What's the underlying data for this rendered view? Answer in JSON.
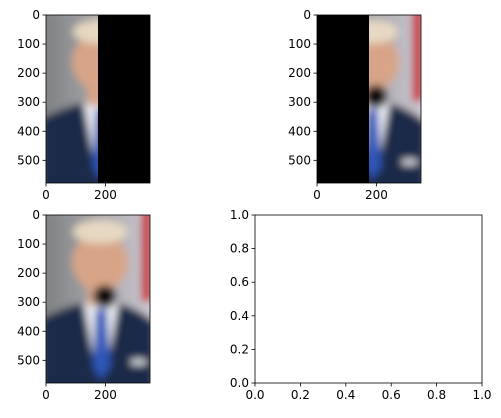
{
  "chart_data": [
    {
      "type": "image",
      "xlim": [
        0,
        350
      ],
      "ylim": [
        578,
        0
      ],
      "xticks": [
        0,
        200
      ],
      "yticks": [
        0,
        100,
        200,
        300,
        400,
        500
      ],
      "xtick_labels": [
        "0",
        "200"
      ],
      "ytick_labels": [
        "0",
        "100",
        "200",
        "300",
        "400",
        "500"
      ],
      "masked_side": "right",
      "visible_fraction": 0.5
    },
    {
      "type": "image",
      "xlim": [
        0,
        350
      ],
      "ylim": [
        578,
        0
      ],
      "xticks": [
        0,
        200
      ],
      "yticks": [
        0,
        100,
        200,
        300,
        400,
        500
      ],
      "xtick_labels": [
        "0",
        "200"
      ],
      "ytick_labels": [
        "0",
        "100",
        "200",
        "300",
        "400",
        "500"
      ],
      "masked_side": "left",
      "visible_fraction": 0.5
    },
    {
      "type": "image",
      "xlim": [
        0,
        350
      ],
      "ylim": [
        578,
        0
      ],
      "xticks": [
        0,
        200
      ],
      "yticks": [
        0,
        100,
        200,
        300,
        400,
        500
      ],
      "xtick_labels": [
        "0",
        "200"
      ],
      "ytick_labels": [
        "0",
        "100",
        "200",
        "300",
        "400",
        "500"
      ],
      "masked_side": "none",
      "visible_fraction": 1.0
    },
    {
      "type": "empty",
      "xlim": [
        0,
        1
      ],
      "ylim": [
        0,
        1
      ],
      "xticks": [
        0,
        0.2,
        0.4,
        0.6,
        0.8,
        1.0
      ],
      "yticks": [
        0,
        0.2,
        0.4,
        0.6,
        0.8,
        1.0
      ],
      "xtick_labels": [
        "0.0",
        "0.2",
        "0.4",
        "0.6",
        "0.8",
        "1.0"
      ],
      "ytick_labels": [
        "0.0",
        "0.2",
        "0.4",
        "0.6",
        "0.8",
        "1.0"
      ]
    }
  ],
  "colors": {
    "mask": "#000000",
    "background": "#ffffff",
    "suit": "#1f2a48",
    "suit_shadow": "#121a30",
    "shirt": "#e9ecf3",
    "tie": "#2e56b8",
    "skin": "#d8a487",
    "hair": "#e6d8c2",
    "backdrop_left": "#7b7f80",
    "backdrop_right": "#cfcad3",
    "flag_red": "#c81e2d",
    "pin": "#0d0d0d"
  }
}
